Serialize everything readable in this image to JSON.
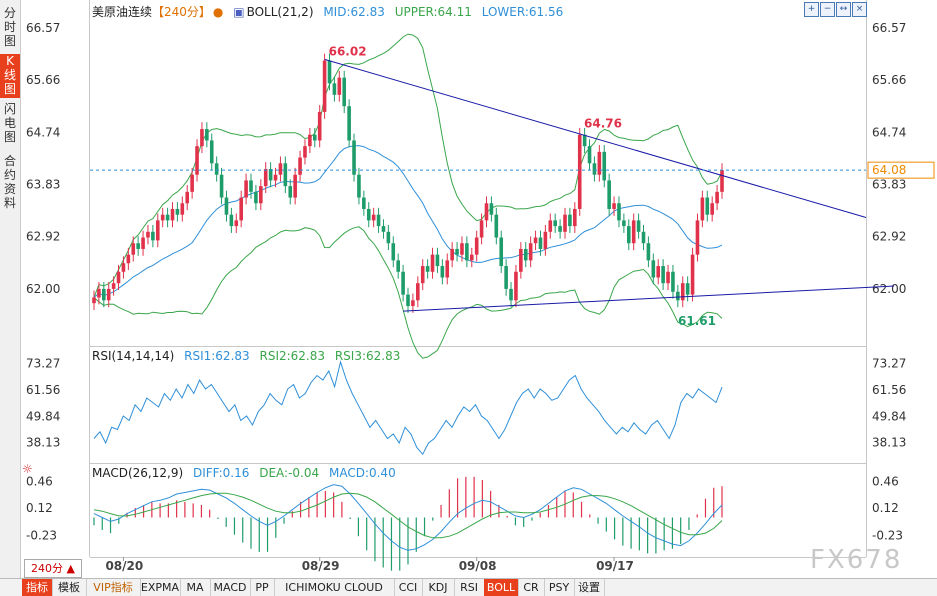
{
  "sidebar": {
    "tabs": [
      {
        "label": "分时图",
        "active": false
      },
      {
        "label": "K线图",
        "active": true
      },
      {
        "label": "闪电图",
        "active": false
      },
      {
        "label": "合约资料",
        "active": false
      }
    ]
  },
  "header": {
    "instrument": "美原油连续",
    "period_badge": "【240分】",
    "period_badge_icon": "settings-dot-icon",
    "boll_label": "BOLL(21,2)",
    "boll_mid": "MID:62.83",
    "boll_upper": "UPPER:64.11",
    "boll_lower": "LOWER:61.56"
  },
  "window_controls": [
    "zoom-in-icon",
    "zoom-out-icon",
    "restore-icon",
    "close-icon"
  ],
  "rsi_header": {
    "label": "RSI(14,14,14)",
    "rsi1": "RSI1:62.83",
    "rsi2": "RSI2:62.83",
    "rsi3": "RSI3:62.83"
  },
  "macd_header": {
    "label": "MACD(26,12,9)",
    "diff": "DIFF:0.16",
    "dea": "DEA:-0.04",
    "macd": "MACD:0.40"
  },
  "period_selector": "240分 ▲",
  "watermark": "FX678",
  "toolbar": {
    "items": [
      {
        "label": "指标",
        "active": true
      },
      {
        "label": "模板",
        "active": false
      },
      {
        "label": "VIP指标",
        "active": false,
        "vip": true
      },
      {
        "label": "EXPMA",
        "active": false
      },
      {
        "label": "MA",
        "active": false
      },
      {
        "label": "MACD",
        "active": false
      },
      {
        "label": "PP",
        "active": false
      },
      {
        "label": "ICHIMOKU CLOUD",
        "active": false
      },
      {
        "label": "CCI",
        "active": false
      },
      {
        "label": "KDJ",
        "active": false
      },
      {
        "label": "RSI",
        "active": false
      },
      {
        "label": "BOLL",
        "active": true
      },
      {
        "label": "CR",
        "active": false
      },
      {
        "label": "PSY",
        "active": false
      },
      {
        "label": "设置",
        "active": false
      }
    ]
  },
  "colors": {
    "up": "#e0324a",
    "down": "#1e9c6a",
    "boll_mid": "#2f8fd8",
    "boll_band": "#3aa64a",
    "trendline": "#1a1aa8",
    "rsi": "#2f8fd8",
    "diff": "#2f8fd8",
    "dea": "#3aa64a",
    "last_price_box": "#f08a00"
  },
  "chart_data": [
    {
      "type": "candlestick",
      "title": "美原油连续",
      "y_ticks": [
        "66.57",
        "65.66",
        "64.74",
        "63.83",
        "62.92",
        "62.00"
      ],
      "ylim": [
        61.0,
        66.85
      ],
      "x_ticks": [
        "08/20",
        "08/29",
        "09/08",
        "09/17"
      ],
      "annotations": [
        {
          "text": "66.02",
          "value": 66.02,
          "kind": "high"
        },
        {
          "text": "64.76",
          "value": 64.76,
          "kind": "high"
        },
        {
          "text": "61.61",
          "value": 61.61,
          "kind": "low"
        }
      ],
      "last_price": "64.08",
      "close": [
        61.85,
        62.0,
        61.8,
        62.0,
        62.1,
        62.3,
        62.45,
        62.6,
        62.8,
        62.7,
        62.9,
        63.0,
        62.85,
        63.2,
        63.3,
        63.2,
        63.4,
        63.3,
        63.5,
        63.7,
        64.0,
        64.5,
        64.8,
        64.6,
        64.2,
        64.0,
        63.6,
        63.3,
        63.1,
        63.2,
        63.6,
        63.9,
        63.7,
        63.5,
        63.8,
        64.1,
        63.9,
        64.0,
        64.2,
        63.8,
        63.6,
        64.0,
        64.3,
        64.5,
        64.7,
        64.6,
        65.1,
        66.0,
        65.6,
        65.4,
        65.7,
        65.2,
        64.6,
        64.0,
        63.6,
        63.4,
        63.2,
        63.3,
        63.1,
        63.0,
        62.8,
        62.5,
        62.3,
        61.9,
        61.7,
        61.8,
        62.1,
        62.4,
        62.3,
        62.6,
        62.4,
        62.2,
        62.5,
        62.7,
        62.6,
        62.8,
        62.5,
        62.6,
        62.9,
        63.2,
        63.5,
        63.3,
        62.9,
        62.4,
        62.0,
        61.8,
        62.3,
        62.7,
        62.5,
        62.8,
        62.9,
        62.7,
        63.0,
        63.2,
        63.1,
        63.0,
        63.3,
        63.1,
        63.4,
        64.7,
        64.5,
        64.2,
        64.0,
        64.4,
        63.9,
        63.4,
        63.5,
        63.2,
        63.1,
        62.8,
        63.2,
        63.0,
        62.8,
        62.5,
        62.2,
        62.4,
        62.1,
        62.3,
        61.95,
        61.8,
        62.1,
        61.9,
        62.6,
        63.2,
        63.6,
        63.3,
        63.5,
        63.7,
        64.08
      ],
      "open_offsets_note": "",
      "overlays": [
        {
          "name": "MID",
          "value": 62.83
        },
        {
          "name": "UPPER",
          "value": 64.11
        },
        {
          "name": "LOWER",
          "value": 61.56
        }
      ]
    },
    {
      "type": "line",
      "title": "RSI(14,14,14)",
      "y_ticks": [
        "73.27",
        "61.56",
        "49.84",
        "38.13"
      ],
      "ylim": [
        30,
        78
      ],
      "series": [
        {
          "name": "RSI1",
          "values": [
            40,
            43,
            38,
            45,
            44,
            50,
            48,
            55,
            52,
            58,
            56,
            54,
            60,
            57,
            62,
            58,
            64,
            60,
            66,
            62,
            64,
            60,
            56,
            52,
            55,
            48,
            50,
            46,
            52,
            55,
            60,
            57,
            55,
            62,
            64,
            58,
            60,
            65,
            68,
            66,
            70,
            63,
            74,
            66,
            60,
            55,
            50,
            45,
            48,
            44,
            40,
            42,
            38,
            45,
            42,
            36,
            33,
            38,
            40,
            44,
            48,
            45,
            50,
            54,
            52,
            55,
            50,
            48,
            44,
            40,
            44,
            50,
            56,
            60,
            62,
            58,
            62,
            60,
            57,
            58,
            62,
            66,
            68,
            62,
            58,
            55,
            52,
            48,
            45,
            42,
            45,
            43,
            47,
            44,
            42,
            46,
            48,
            44,
            40,
            46,
            56,
            60,
            58,
            62,
            60,
            58,
            56,
            62.83
          ]
        }
      ]
    },
    {
      "type": "bar+line",
      "title": "MACD(26,12,9)",
      "y_ticks": [
        "0.46",
        "0.12",
        "-0.23"
      ],
      "ylim": [
        -0.48,
        0.62
      ],
      "series": [
        {
          "name": "DIFF",
          "values": [
            0.05,
            0.0,
            -0.05,
            -0.02,
            0.05,
            0.1,
            0.15,
            0.2,
            0.22,
            0.25,
            0.3,
            0.32,
            0.34,
            0.36,
            0.35,
            0.3,
            0.25,
            0.18,
            0.1,
            0.02,
            -0.05,
            -0.1,
            -0.05,
            0.02,
            0.1,
            0.18,
            0.25,
            0.32,
            0.38,
            0.42,
            0.4,
            0.3,
            0.18,
            0.05,
            -0.08,
            -0.2,
            -0.3,
            -0.38,
            -0.42,
            -0.4,
            -0.35,
            -0.28,
            -0.18,
            -0.06,
            0.05,
            0.12,
            0.18,
            0.22,
            0.2,
            0.14,
            0.08,
            0.02,
            0.0,
            0.04,
            0.1,
            0.18,
            0.26,
            0.34,
            0.38,
            0.36,
            0.3,
            0.24,
            0.18,
            0.1,
            0.02,
            -0.05,
            -0.12,
            -0.2,
            -0.26,
            -0.3,
            -0.34,
            -0.36,
            -0.3,
            -0.2,
            -0.08,
            0.05,
            0.16
          ]
        },
        {
          "name": "DEA",
          "values": [
            0.1,
            0.08,
            0.05,
            0.02,
            0.02,
            0.04,
            0.07,
            0.1,
            0.13,
            0.16,
            0.19,
            0.22,
            0.25,
            0.28,
            0.3,
            0.31,
            0.31,
            0.29,
            0.26,
            0.22,
            0.17,
            0.12,
            0.08,
            0.06,
            0.06,
            0.08,
            0.12,
            0.16,
            0.21,
            0.26,
            0.3,
            0.31,
            0.3,
            0.26,
            0.2,
            0.12,
            0.04,
            -0.04,
            -0.12,
            -0.18,
            -0.23,
            -0.26,
            -0.26,
            -0.24,
            -0.2,
            -0.14,
            -0.08,
            -0.02,
            0.03,
            0.06,
            0.07,
            0.07,
            0.06,
            0.06,
            0.07,
            0.1,
            0.13,
            0.17,
            0.22,
            0.26,
            0.28,
            0.28,
            0.27,
            0.24,
            0.2,
            0.15,
            0.09,
            0.03,
            -0.03,
            -0.09,
            -0.14,
            -0.19,
            -0.22,
            -0.22,
            -0.2,
            -0.14,
            -0.04
          ]
        }
      ]
    }
  ]
}
